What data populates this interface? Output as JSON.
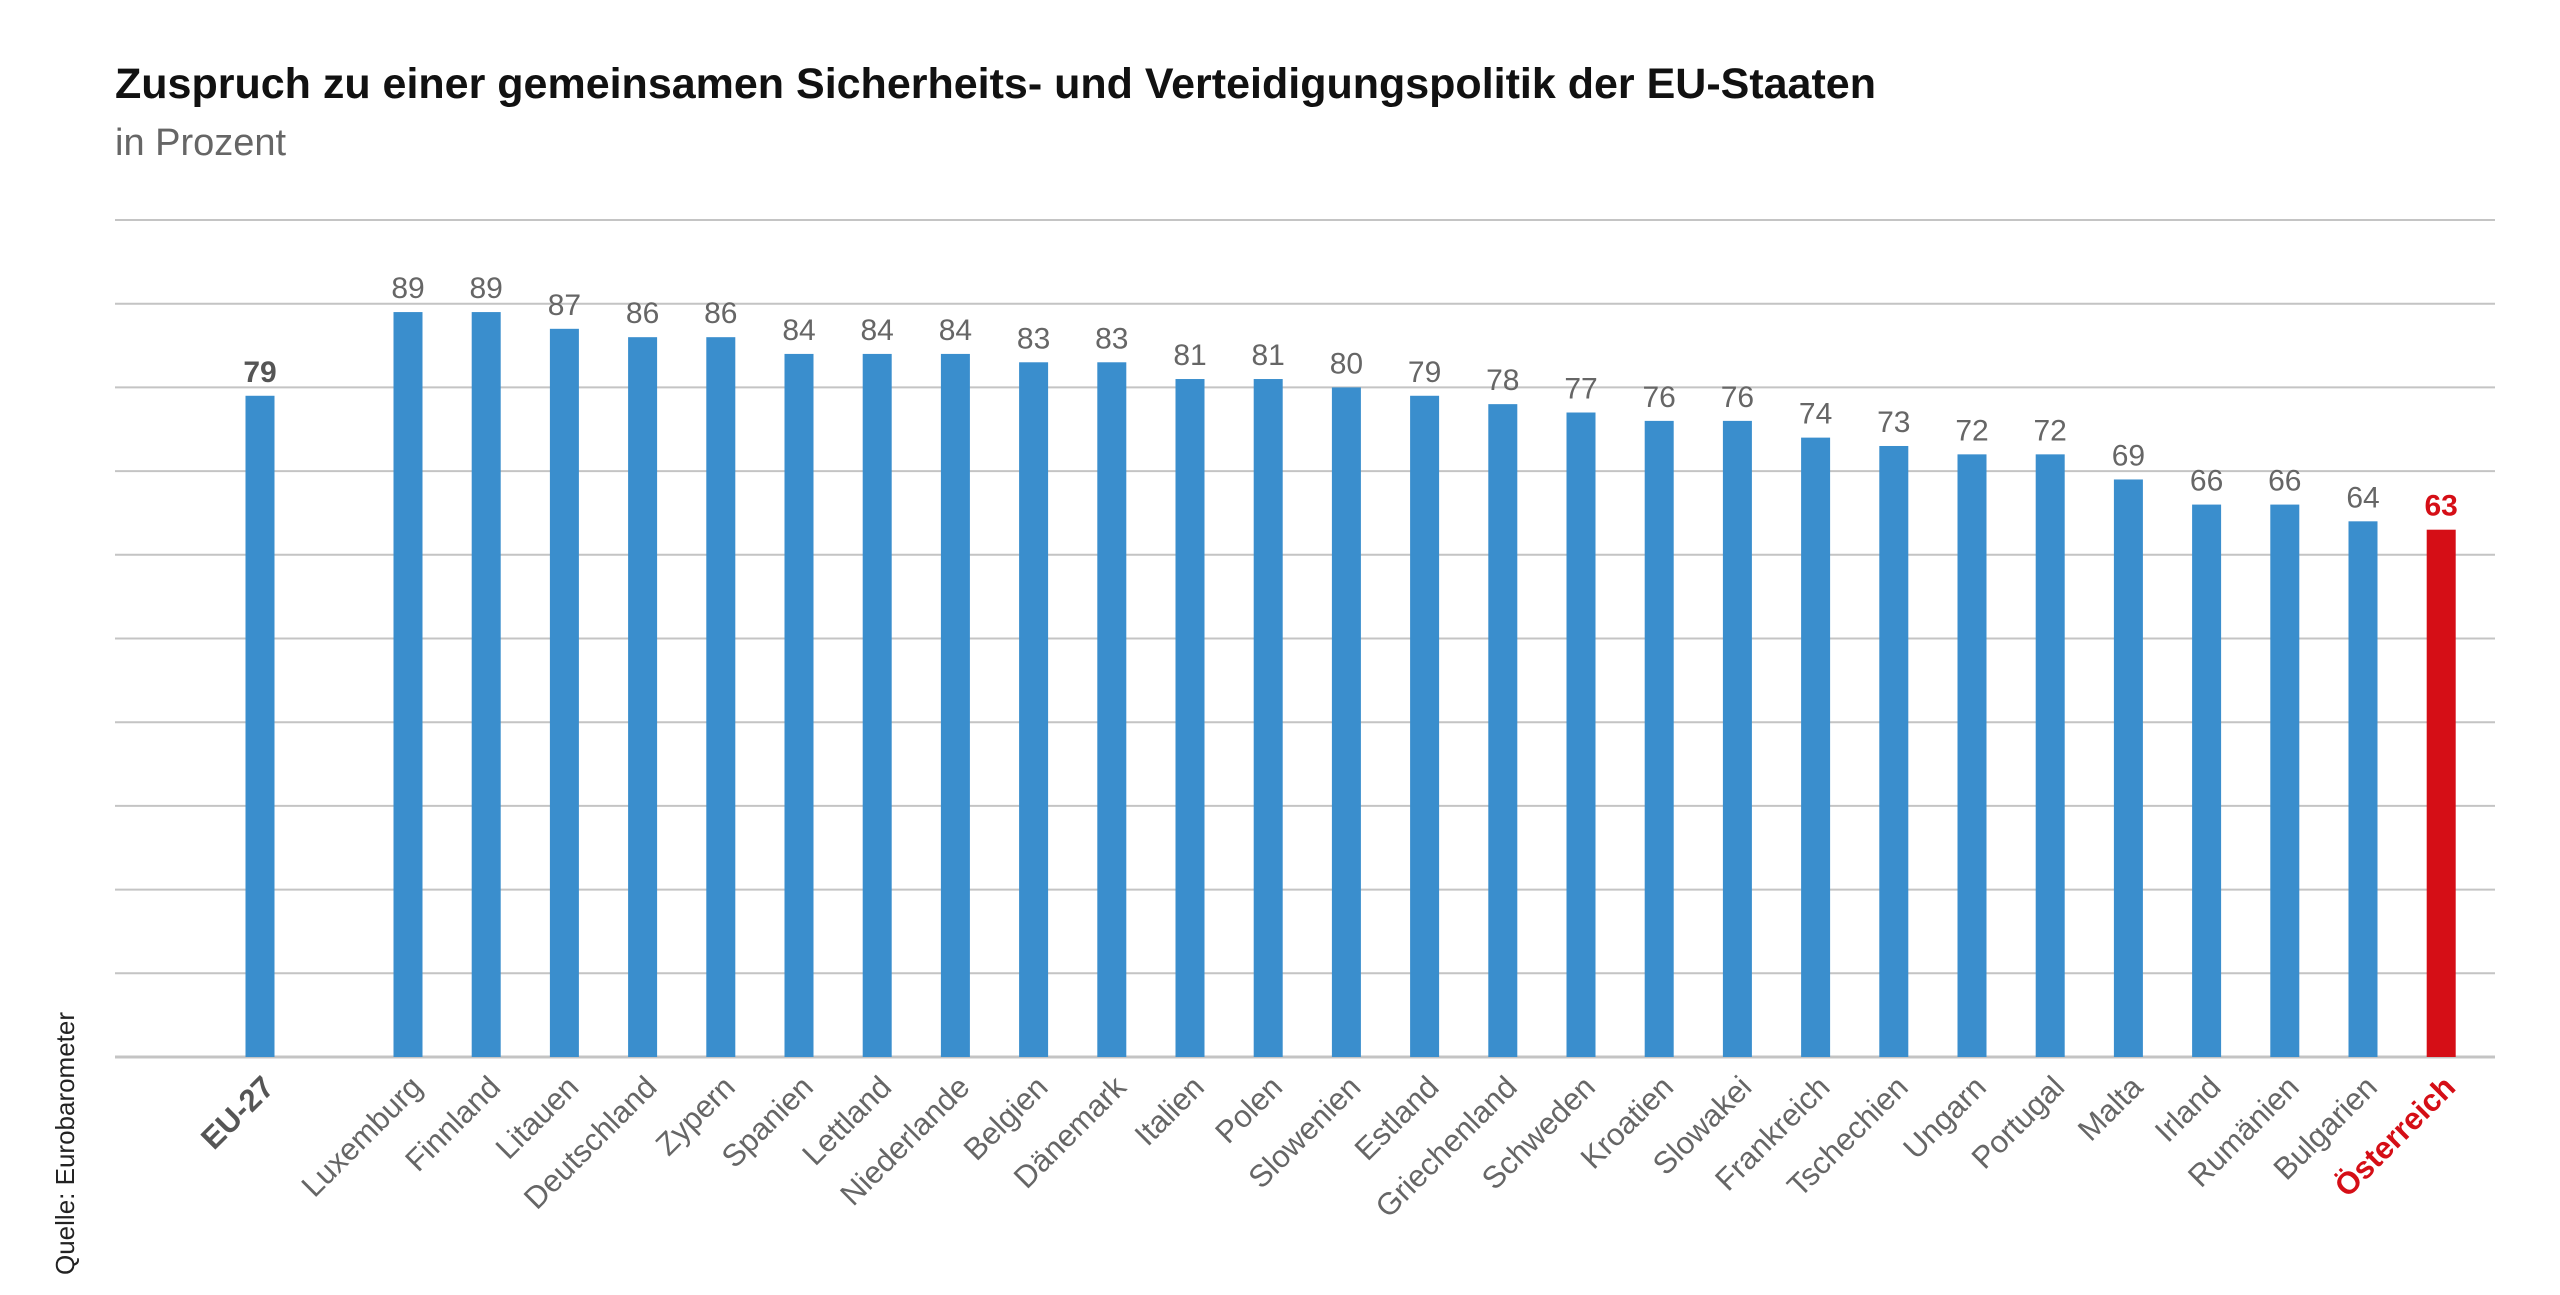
{
  "title": "Zuspruch zu einer gemeinsamen Sicherheits- und Verteidigungspolitik der EU-Staaten",
  "subtitle": "in Prozent",
  "source": "Quelle: Eurobarometer",
  "colors": {
    "bar": "#3a8ecd",
    "highlight": "#d50e16",
    "grid": "#c4c4c4",
    "label": "#666666",
    "label_bold": "#555555"
  },
  "chart_data": {
    "type": "bar",
    "title": "Zuspruch zu einer gemeinsamen Sicherheits- und Verteidigungspolitik der EU-Staaten",
    "subtitle": "in Prozent",
    "ylim": [
      0,
      100
    ],
    "grid": true,
    "categories": [
      "EU-27",
      "Luxemburg",
      "Finnland",
      "Litauen",
      "Deutschland",
      "Zypern",
      "Spanien",
      "Lettland",
      "Niederlande",
      "Belgien",
      "Dänemark",
      "Italien",
      "Polen",
      "Slowenien",
      "Estland",
      "Griechenland",
      "Schweden",
      "Kroatien",
      "Slowakei",
      "Frankreich",
      "Tschechien",
      "Ungarn",
      "Portugal",
      "Malta",
      "Irland",
      "Rumänien",
      "Bulgarien",
      "Österreich"
    ],
    "values": [
      79,
      89,
      89,
      87,
      86,
      86,
      84,
      84,
      84,
      83,
      83,
      81,
      81,
      80,
      79,
      78,
      77,
      76,
      76,
      74,
      73,
      72,
      72,
      69,
      66,
      66,
      64,
      63
    ],
    "value_labels": [
      "79",
      "89",
      "89",
      "87",
      "86",
      "86",
      "84",
      "84",
      "84",
      "83",
      "83",
      "81",
      "81",
      "80",
      "79",
      "78",
      "77",
      "76",
      "76",
      "74",
      "73",
      "72",
      "72",
      "69",
      "66",
      "66",
      "64",
      "63"
    ],
    "emphasis": {
      "bold": [
        "EU-27",
        "Österreich"
      ],
      "highlight": [
        "Österreich"
      ]
    }
  }
}
